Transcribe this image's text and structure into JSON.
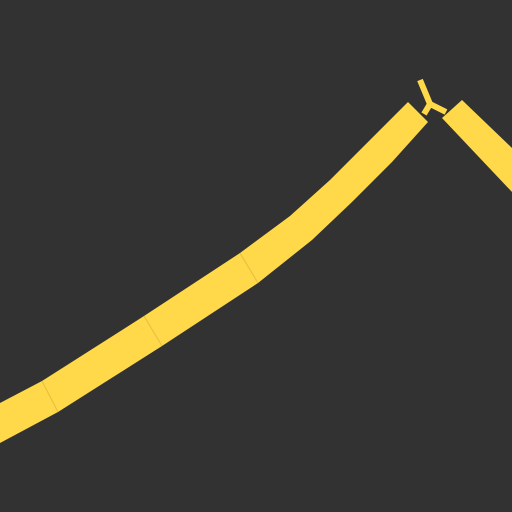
{
  "scene": {
    "background_color": "#323232",
    "road_color": "#FFD94A",
    "seam_color": "#E8C23E",
    "road_segments": [
      {
        "name": "road-segment-1"
      },
      {
        "name": "road-segment-2"
      },
      {
        "name": "road-segment-3"
      },
      {
        "name": "road-segment-4"
      },
      {
        "name": "road-segment-5"
      }
    ],
    "fork_marker": {
      "name": "fork-marker",
      "shape": "Y"
    }
  }
}
